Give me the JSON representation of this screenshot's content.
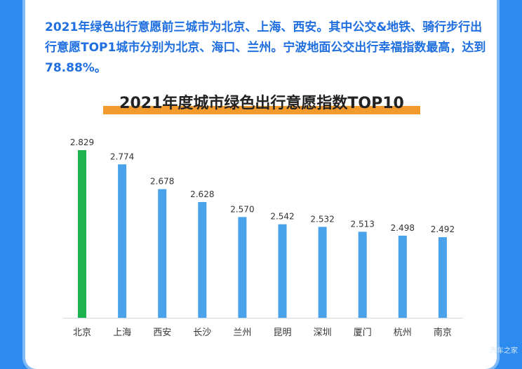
{
  "intro_text": "2021年绿色出行意愿前三城市为北京、上海、西安。其中公交&地铁、骑行步行出行意愿TOP1城市分别为北京、海口、兰州。宁波地面公交出行幸福指数最高，达到78.88%。",
  "watermark": "汽车之家",
  "colors": {
    "highlight": "#1cb34e",
    "bar": "#4aa3ea",
    "accent": "#f39a2d",
    "text_blue": "#1f6fe0"
  },
  "chart_data": {
    "type": "bar",
    "title": "2021年度城市绿色出行意愿指数TOP10",
    "categories": [
      "北京",
      "上海",
      "西安",
      "长沙",
      "兰州",
      "昆明",
      "深圳",
      "厦门",
      "杭州",
      "南京"
    ],
    "values": [
      2.829,
      2.774,
      2.678,
      2.628,
      2.57,
      2.542,
      2.532,
      2.513,
      2.498,
      2.492
    ],
    "value_labels": [
      "2.829",
      "2.774",
      "2.678",
      "2.628",
      "2.570",
      "2.542",
      "2.532",
      "2.513",
      "2.498",
      "2.492"
    ],
    "highlight_index": 0,
    "grid": false,
    "xlabel": "",
    "ylabel": ""
  }
}
